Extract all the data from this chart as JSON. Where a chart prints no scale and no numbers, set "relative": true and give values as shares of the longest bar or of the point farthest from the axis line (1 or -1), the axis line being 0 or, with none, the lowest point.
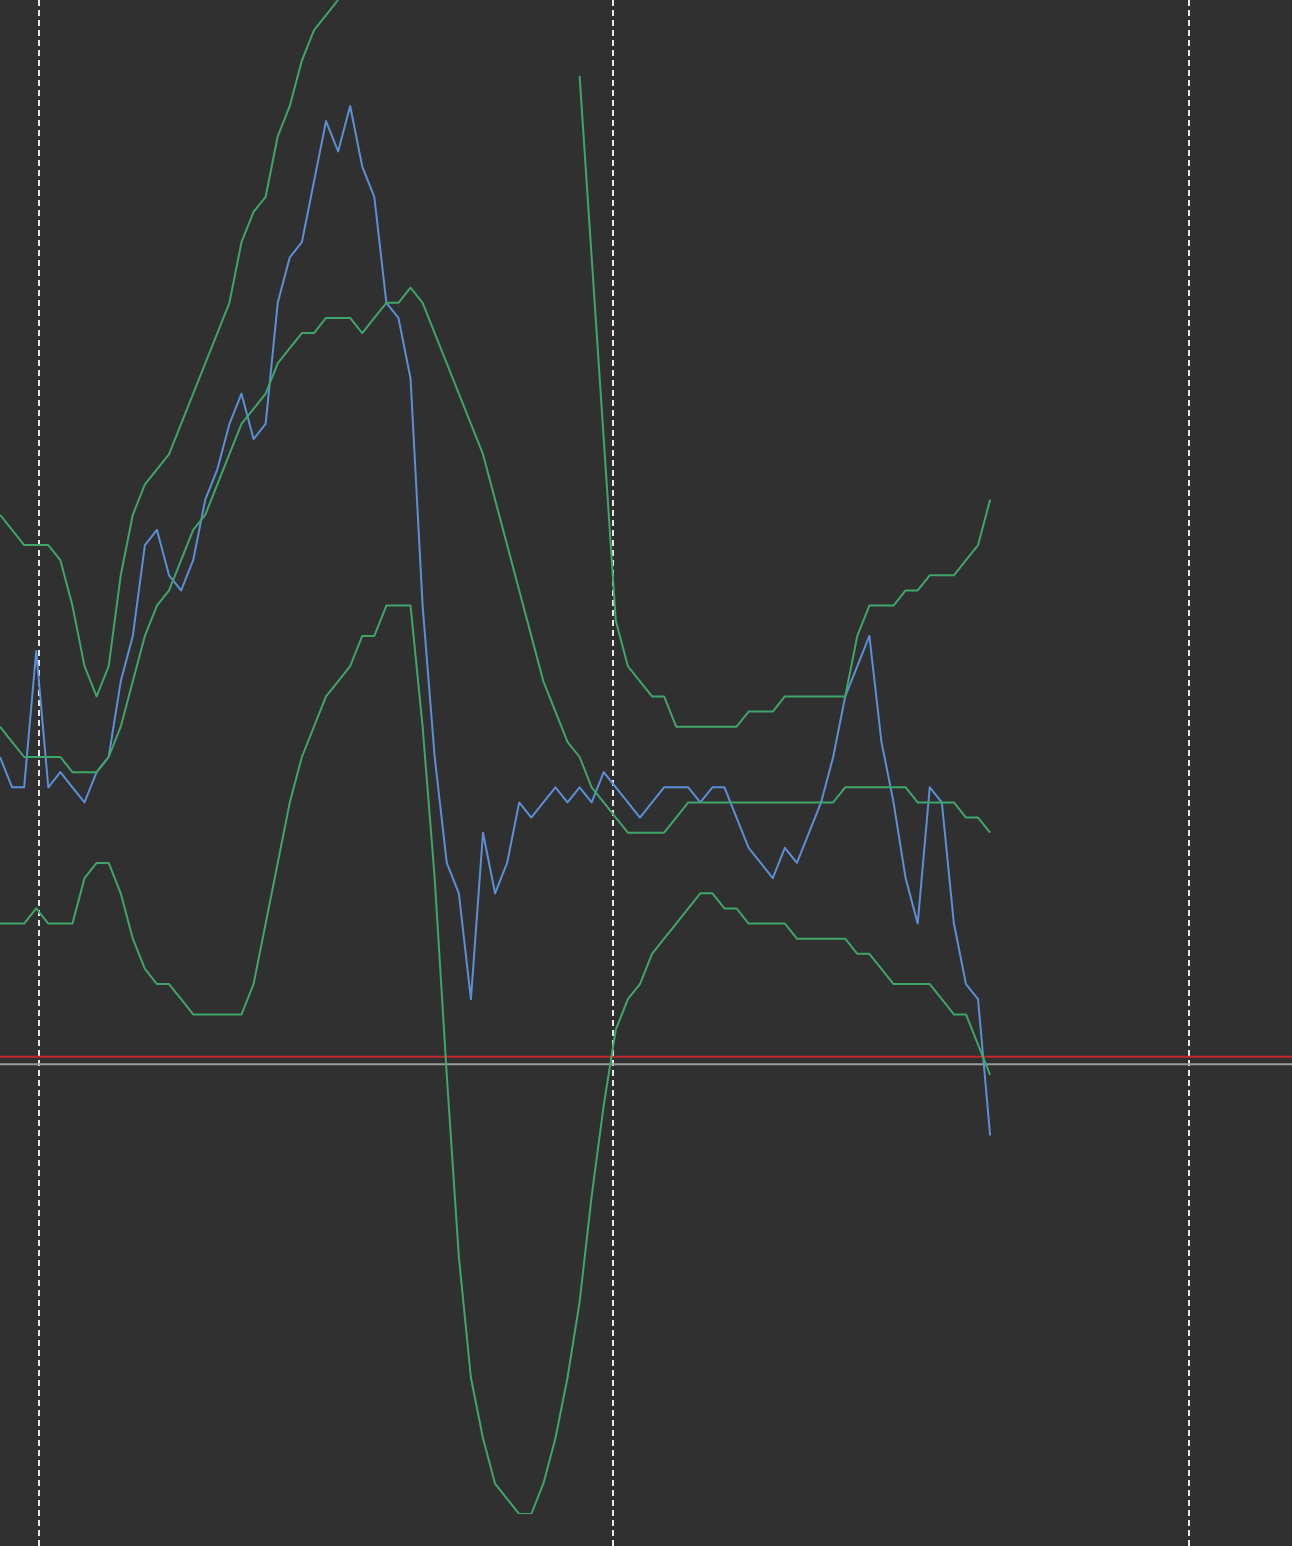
{
  "chart_data": {
    "type": "line",
    "relative": true,
    "legend": false,
    "grid": false,
    "marker": "none",
    "tick_labels": false,
    "categories": [
      null,
      null,
      null,
      null,
      null,
      null,
      null,
      null,
      null,
      null,
      null,
      null,
      null,
      null,
      null,
      null,
      null,
      null,
      null,
      null,
      null,
      null,
      null,
      null,
      null,
      null,
      null,
      null,
      null,
      null,
      null,
      null,
      null,
      null,
      null,
      null,
      null,
      null,
      null,
      null,
      null,
      null,
      null,
      null,
      null,
      null,
      null,
      null,
      null,
      null,
      null,
      null,
      null,
      null,
      null,
      null,
      null,
      null,
      null,
      null,
      null,
      null,
      null,
      null,
      null,
      null,
      null,
      null,
      null,
      null,
      null,
      null,
      null,
      null,
      null,
      null,
      null,
      null,
      null,
      null,
      null,
      null,
      null,
      null,
      null,
      null,
      null,
      null,
      null,
      null,
      null,
      null,
      null,
      null,
      null,
      null,
      null,
      null,
      null,
      null,
      null,
      null,
      null,
      null,
      null,
      null,
      null,
      null
    ],
    "series": [
      {
        "color": "#3fa56a",
        "values": [
          0.66,
          0.65,
          0.64,
          0.64,
          0.64,
          0.63,
          0.6,
          0.56,
          0.54,
          0.56,
          0.62,
          0.66,
          0.68,
          0.69,
          0.7,
          0.72,
          0.74,
          0.76,
          0.78,
          0.8,
          0.84,
          0.86,
          0.87,
          0.91,
          0.93,
          0.96,
          0.98,
          0.99,
          1.0,
          null,
          null,
          null,
          null,
          null,
          null,
          null,
          null,
          null,
          null,
          null,
          null,
          null,
          null,
          null,
          null,
          null,
          null,
          null,
          0.95,
          0.83,
          0.71,
          0.59,
          0.56,
          0.55,
          0.54,
          0.54,
          0.52,
          0.52,
          0.52,
          0.52,
          0.52,
          0.52,
          0.53,
          0.53,
          0.53,
          0.54,
          0.54,
          0.54,
          0.54,
          0.54,
          0.54,
          0.58,
          0.6,
          0.6,
          0.6,
          0.61,
          0.61,
          0.62,
          0.62,
          0.62,
          0.63,
          0.64,
          0.67,
          null,
          null,
          null,
          null,
          null,
          null,
          null,
          null,
          null,
          null,
          null,
          null,
          null,
          null,
          null,
          null,
          null,
          null,
          null,
          null,
          null,
          null,
          null,
          null,
          null
        ]
      },
      {
        "color": "#3fa56a",
        "values": [
          0.52,
          0.51,
          0.5,
          0.5,
          0.5,
          0.5,
          0.49,
          0.49,
          0.49,
          0.5,
          0.52,
          0.55,
          0.58,
          0.6,
          0.61,
          0.63,
          0.65,
          0.66,
          0.68,
          0.7,
          0.72,
          0.73,
          0.74,
          0.76,
          0.77,
          0.78,
          0.78,
          0.79,
          0.79,
          0.79,
          0.78,
          0.79,
          0.8,
          0.8,
          0.81,
          0.8,
          0.78,
          0.76,
          0.74,
          0.72,
          0.7,
          0.67,
          0.64,
          0.61,
          0.58,
          0.55,
          0.53,
          0.51,
          0.5,
          0.48,
          0.47,
          0.46,
          0.45,
          0.45,
          0.45,
          0.45,
          0.46,
          0.47,
          0.47,
          0.47,
          0.47,
          0.47,
          0.47,
          0.47,
          0.47,
          0.47,
          0.47,
          0.47,
          0.47,
          0.47,
          0.48,
          0.48,
          0.48,
          0.48,
          0.48,
          0.48,
          0.47,
          0.47,
          0.47,
          0.47,
          0.46,
          0.46,
          0.45,
          null,
          null,
          null,
          null,
          null,
          null,
          null,
          null,
          null,
          null,
          null,
          null,
          null,
          null,
          null,
          null,
          null,
          null,
          null,
          null,
          null,
          null,
          null,
          null,
          null
        ]
      },
      {
        "color": "#3fa56a",
        "values": [
          0.39,
          0.39,
          0.39,
          0.4,
          0.39,
          0.39,
          0.39,
          0.42,
          0.43,
          0.43,
          0.41,
          0.38,
          0.36,
          0.35,
          0.35,
          0.34,
          0.33,
          0.33,
          0.33,
          0.33,
          0.33,
          0.35,
          0.39,
          0.43,
          0.47,
          0.5,
          0.52,
          0.54,
          0.55,
          0.56,
          0.58,
          0.58,
          0.6,
          0.6,
          0.6,
          0.52,
          0.42,
          0.29,
          0.17,
          0.09,
          0.05,
          0.02,
          0.01,
          0,
          0.0,
          0.02,
          0.05,
          0.09,
          0.14,
          0.21,
          0.27,
          0.32,
          0.34,
          0.35,
          0.37,
          0.38,
          0.39,
          0.4,
          0.41,
          0.41,
          0.4,
          0.4,
          0.39,
          0.39,
          0.39,
          0.39,
          0.38,
          0.38,
          0.38,
          0.38,
          0.38,
          0.37,
          0.37,
          0.36,
          0.35,
          0.35,
          0.35,
          0.35,
          0.34,
          0.33,
          0.33,
          0.31,
          0.29,
          null,
          null,
          null,
          null,
          null,
          null,
          null,
          null,
          null,
          null,
          null,
          null,
          null,
          null,
          null,
          null,
          null,
          null,
          null,
          null,
          null,
          null,
          null,
          null,
          null
        ]
      },
      {
        "color": "#5b8fd6",
        "values": [
          0.5,
          0.48,
          0.48,
          0.57,
          0.48,
          0.49,
          0.48,
          0.47,
          0.49,
          0.5,
          0.55,
          0.58,
          0.64,
          0.65,
          0.62,
          0.61,
          0.63,
          0.67,
          0.69,
          0.72,
          0.74,
          0.71,
          0.72,
          0.8,
          0.83,
          0.84,
          0.88,
          0.92,
          0.9,
          0.93,
          0.89,
          0.87,
          0.8,
          0.79,
          0.75,
          0.6,
          0.5,
          0.43,
          0.41,
          0.34,
          0.45,
          0.41,
          0.43,
          0.47,
          0.46,
          0.47,
          0.48,
          0.47,
          0.48,
          0.47,
          0.49,
          0.48,
          0.47,
          0.46,
          0.47,
          0.48,
          0.48,
          0.48,
          0.47,
          0.48,
          0.48,
          0.46,
          0.44,
          0.43,
          0.42,
          0.44,
          0.43,
          0.45,
          0.47,
          0.5,
          0.54,
          0.56,
          0.58,
          0.51,
          0.47,
          0.42,
          0.39,
          0.48,
          0.47,
          0.39,
          0.35,
          0.34,
          0.25,
          null,
          null,
          null,
          null,
          null,
          null,
          null,
          null,
          null,
          null,
          null,
          null,
          null,
          null,
          null,
          null,
          null,
          null,
          null,
          null,
          null,
          null,
          null,
          null,
          null
        ]
      }
    ],
    "ref_lines": [
      {
        "axis": "y",
        "value": 0.302,
        "color": "#c0282d",
        "line_style": "solid"
      },
      {
        "axis": "y",
        "value": 0.297,
        "color": "#9a9a9a",
        "line_style": "solid"
      }
    ]
  }
}
